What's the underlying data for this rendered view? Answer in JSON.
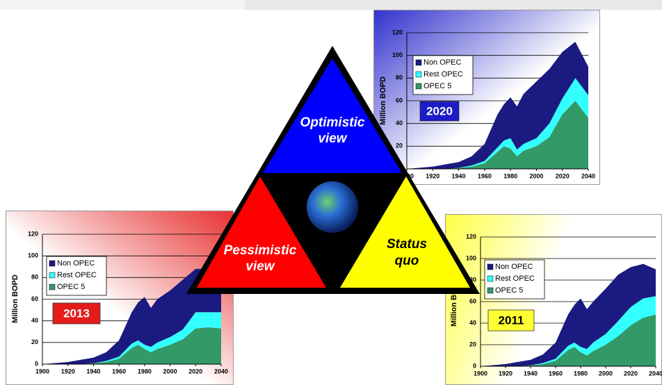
{
  "chart_data": [
    {
      "type": "area",
      "stacked": true,
      "label": "2020",
      "label_color": "#1c1cc8",
      "label_text_color": "#ffffff",
      "y_label": "Million BOPD",
      "x": [
        1900,
        1910,
        1920,
        1930,
        1940,
        1950,
        1960,
        1970,
        1975,
        1980,
        1985,
        1990,
        2000,
        2010,
        2020,
        2030,
        2040
      ],
      "series": [
        {
          "name": "OPEC 5",
          "color": "#339966",
          "values": [
            0,
            0,
            0,
            0,
            1,
            2,
            5,
            15,
            20,
            18,
            11,
            16,
            20,
            28,
            48,
            60,
            45
          ]
        },
        {
          "name": "Rest OPEC",
          "color": "#33ffff",
          "values": [
            0,
            0,
            0,
            0,
            0,
            1,
            2,
            4,
            5,
            9,
            6,
            6,
            7,
            12,
            14,
            20,
            20
          ]
        },
        {
          "name": "Non OPEC",
          "color": "#1a1a80",
          "values": [
            0,
            1,
            2,
            4,
            5,
            8,
            15,
            29,
            32,
            36,
            38,
            44,
            50,
            48,
            41,
            32,
            25
          ]
        }
      ],
      "xlim": [
        1900,
        2040
      ],
      "xticks": [
        1900,
        1920,
        1940,
        1960,
        1980,
        2000,
        2020,
        2040
      ],
      "ylim": [
        0,
        120
      ],
      "yticks": [
        0,
        20,
        40,
        60,
        80,
        100,
        120
      ],
      "grid": true
    },
    {
      "type": "area",
      "stacked": true,
      "label": "2013",
      "label_color": "#e51c1c",
      "label_text_color": "#ffffff",
      "y_label": "Million BOPD",
      "x": [
        1900,
        1910,
        1920,
        1930,
        1940,
        1950,
        1960,
        1970,
        1975,
        1980,
        1985,
        1990,
        2000,
        2010,
        2020,
        2030,
        2040
      ],
      "series": [
        {
          "name": "OPEC 5",
          "color": "#339966",
          "values": [
            0,
            0,
            0,
            0,
            1,
            2,
            5,
            15,
            18,
            14,
            11,
            14,
            18,
            23,
            33,
            34,
            33
          ]
        },
        {
          "name": "Rest OPEC",
          "color": "#33ffff",
          "values": [
            0,
            0,
            0,
            0,
            0,
            1,
            2,
            4,
            4,
            4,
            5,
            6,
            7,
            9,
            15,
            14,
            15
          ]
        },
        {
          "name": "Non OPEC",
          "color": "#1a1a80",
          "values": [
            0,
            1,
            2,
            4,
            5,
            8,
            15,
            29,
            35,
            44,
            36,
            40,
            43,
            46,
            40,
            40,
            40
          ]
        }
      ],
      "xlim": [
        1900,
        2040
      ],
      "xticks": [
        1900,
        1920,
        1940,
        1960,
        1980,
        2000,
        2020,
        2040
      ],
      "ylim": [
        0,
        120
      ],
      "yticks": [
        0,
        20,
        40,
        60,
        80,
        100,
        120
      ],
      "grid": true
    },
    {
      "type": "area",
      "stacked": true,
      "label": "2011",
      "label_color": "#ffff33",
      "label_text_color": "#000000",
      "y_label": "Million BOPD",
      "x": [
        1900,
        1910,
        1920,
        1930,
        1940,
        1950,
        1960,
        1970,
        1975,
        1980,
        1985,
        1990,
        2000,
        2010,
        2020,
        2030,
        2040
      ],
      "series": [
        {
          "name": "OPEC 5",
          "color": "#339966",
          "values": [
            0,
            0,
            0,
            0,
            1,
            2,
            5,
            15,
            18,
            13,
            10,
            14,
            20,
            28,
            38,
            45,
            48
          ]
        },
        {
          "name": "Rest OPEC",
          "color": "#33ffff",
          "values": [
            0,
            0,
            0,
            0,
            0,
            1,
            2,
            4,
            4,
            5,
            6,
            8,
            10,
            14,
            17,
            18,
            17
          ]
        },
        {
          "name": "Non OPEC",
          "color": "#1a1a80",
          "values": [
            0,
            1,
            2,
            4,
            5,
            8,
            15,
            29,
            35,
            45,
            37,
            38,
            42,
            43,
            37,
            32,
            25
          ]
        }
      ],
      "xlim": [
        1900,
        2040
      ],
      "xticks": [
        1900,
        1920,
        1940,
        1960,
        1980,
        2000,
        2020,
        2040
      ],
      "ylim": [
        0,
        120
      ],
      "yticks": [
        0,
        20,
        40,
        60,
        80,
        100,
        120
      ],
      "grid": true
    }
  ],
  "triangle": {
    "top": [
      "Optimistic",
      "view"
    ],
    "left": [
      "Pessimistic",
      "view"
    ],
    "right": [
      "Status",
      "quo"
    ]
  }
}
